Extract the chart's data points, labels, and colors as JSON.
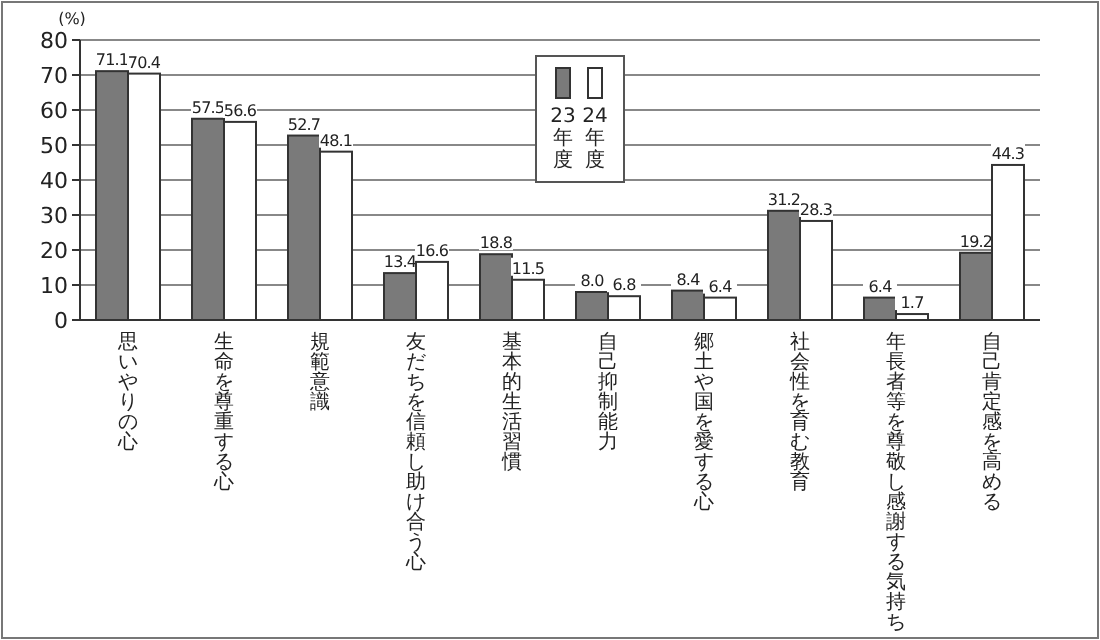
{
  "chart_data": {
    "type": "bar",
    "ylabel": "(%)",
    "categories": [
      "思いやりの心",
      "生命を尊重する心",
      "規範意識",
      "友だちを信頼し助け合う心",
      "基本的生活習慣",
      "自己抑制能力",
      "郷土や国を愛する心",
      "社会性を育む教育",
      "年長者等を尊敬し感謝する気持ち",
      "自己肯定感を高める"
    ],
    "series": [
      {
        "name": "23年度",
        "color": "#7a7a7a",
        "values": [
          71.1,
          57.5,
          52.7,
          13.4,
          18.8,
          8.0,
          8.4,
          31.2,
          6.4,
          19.2
        ],
        "value_labels": [
          "71.1",
          "57.5",
          "52.7",
          "13.4",
          "18.8",
          "8.0",
          "8.4",
          "31.2",
          "6.4",
          "19.2"
        ]
      },
      {
        "name": "24年度",
        "color": "#ffffff",
        "values": [
          70.4,
          56.6,
          48.1,
          16.6,
          11.5,
          6.8,
          6.4,
          28.3,
          1.7,
          44.3
        ],
        "value_labels": [
          "70.4",
          "56.6",
          "48.1",
          "16.6",
          "11.5",
          "6.8",
          "6.4",
          "28.3",
          "1.7",
          "44.3"
        ]
      }
    ],
    "ylim": [
      0,
      80
    ],
    "yticks": [
      0,
      10,
      20,
      30,
      40,
      50,
      60,
      70,
      80
    ],
    "grid": "y",
    "legend": "top"
  }
}
